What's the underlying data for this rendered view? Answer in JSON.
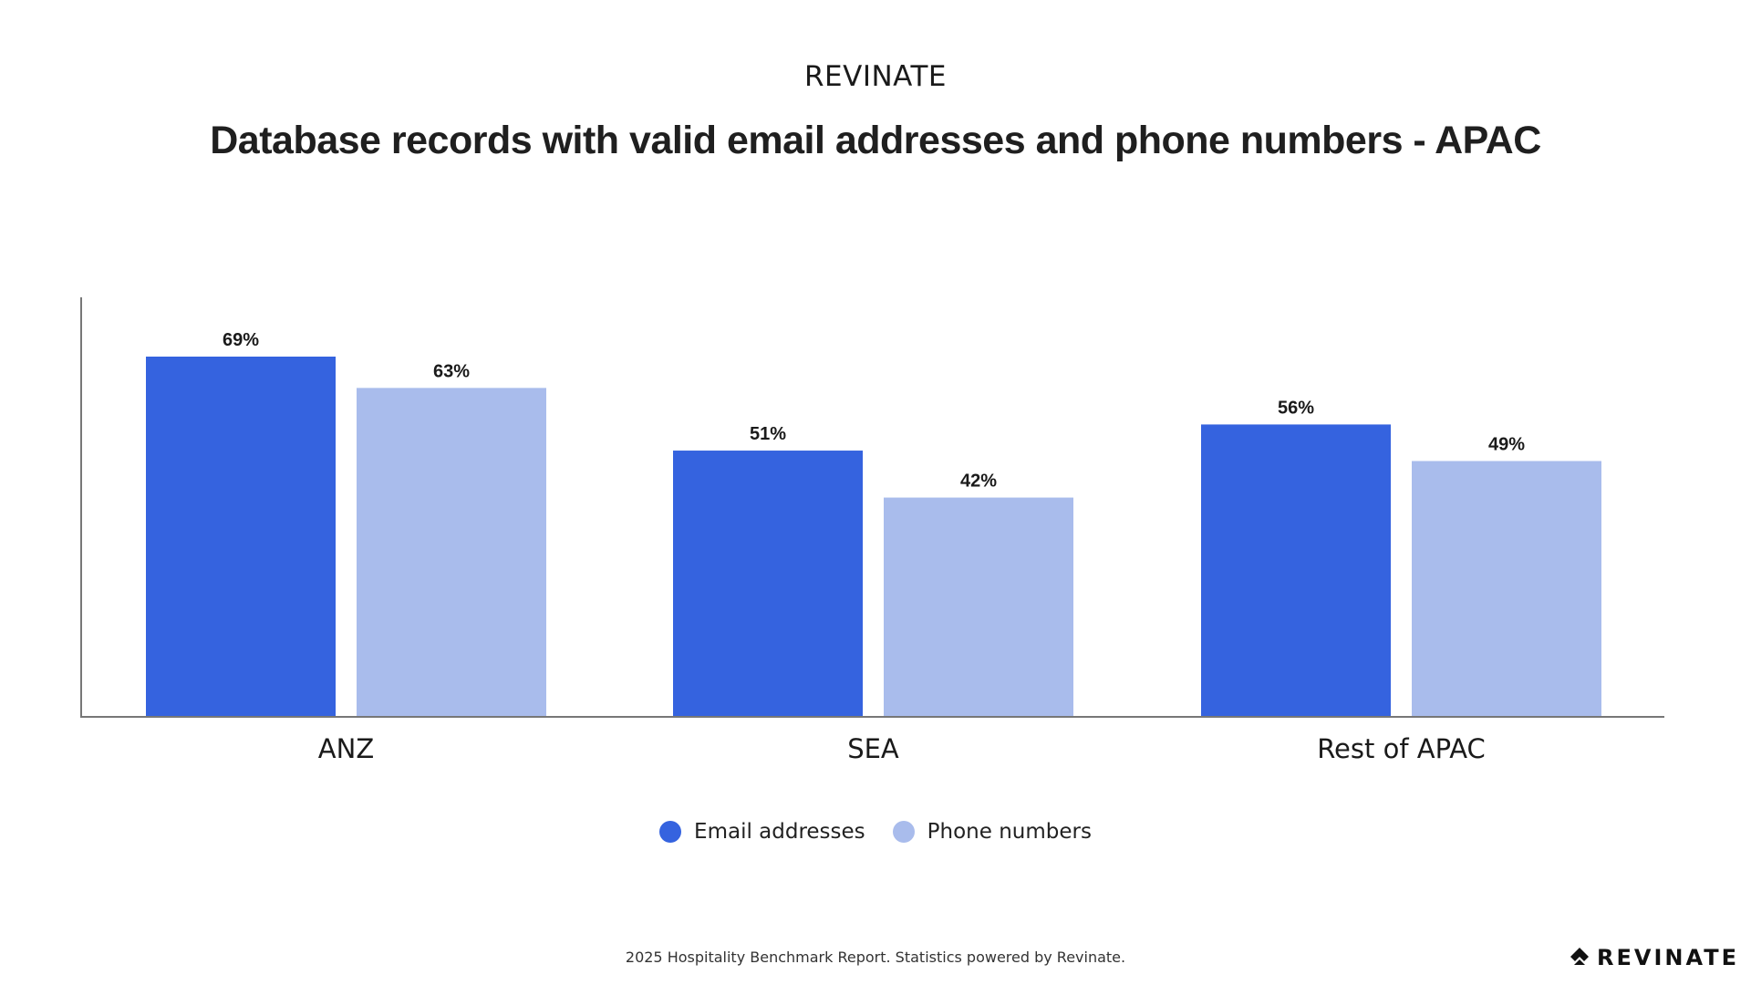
{
  "header": {
    "brand": "REVINATE"
  },
  "colors": {
    "email": "#3563df",
    "phone": "#a9bcec",
    "axis": "#777777",
    "label": "#1a1a1a"
  },
  "chart_data": {
    "type": "bar",
    "title": "Database records with valid email addresses and phone numbers - APAC",
    "xlabel": "",
    "ylabel": "",
    "ylim": [
      0,
      80
    ],
    "categories": [
      "ANZ",
      "SEA",
      "Rest of APAC"
    ],
    "series": [
      {
        "name": "Email addresses",
        "values": [
          69,
          51,
          56
        ],
        "labels": [
          "69%",
          "51%",
          "56%"
        ]
      },
      {
        "name": "Phone numbers",
        "values": [
          63,
          42,
          49
        ],
        "labels": [
          "63%",
          "42%",
          "49%"
        ]
      }
    ],
    "legend": "bottom-center",
    "grid": false
  },
  "footer": {
    "note": "2025 Hospitality Benchmark Report. Statistics powered by Revinate.",
    "logo_text": "REVINATE",
    "logo_icon": "revinate-logo-icon"
  }
}
